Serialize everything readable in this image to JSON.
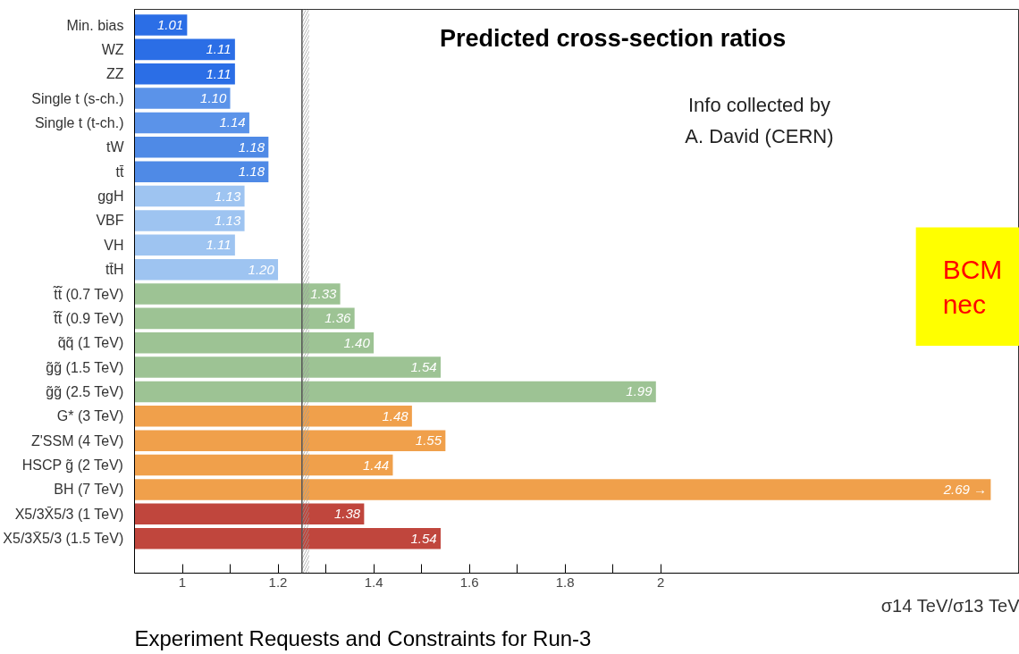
{
  "chart_data": {
    "type": "bar",
    "orientation": "horizontal",
    "title": "Predicted cross-section ratios",
    "xlabel": "σ14 TeV/σ13 TeV",
    "categories": [
      "Min. bias",
      "WZ",
      "ZZ",
      "Single t (s-ch.)",
      "Single t (t-ch.)",
      "tW",
      "tt̄",
      "ggH",
      "VBF",
      "VH",
      "tt̄H",
      "t̃t̃ (0.7 TeV)",
      "t̃t̃ (0.9 TeV)",
      "q̃q̃ (1 TeV)",
      "g̃g̃ (1.5 TeV)",
      "g̃g̃ (2.5 TeV)",
      "G* (3 TeV)",
      "Z'SSM (4 TeV)",
      "HSCP g̃ (2 TeV)",
      "BH (7 TeV)",
      "X5/3X̄5/3 (1 TeV)",
      "X5/3X̄5/3 (1.5 TeV)"
    ],
    "values": [
      1.01,
      1.11,
      1.11,
      1.1,
      1.14,
      1.18,
      1.18,
      1.13,
      1.13,
      1.11,
      1.2,
      1.33,
      1.36,
      1.4,
      1.54,
      1.99,
      1.48,
      1.55,
      1.44,
      2.69,
      1.38,
      1.54
    ],
    "value_labels": [
      "1.01",
      "1.11",
      "1.11",
      "1.10",
      "1.14",
      "1.18",
      "1.18",
      "1.13",
      "1.13",
      "1.11",
      "1.20",
      "1.33",
      "1.36",
      "1.40",
      "1.54",
      "1.99",
      "1.48",
      "1.55",
      "1.44",
      "2.69 →",
      "1.38",
      "1.54"
    ],
    "colors": [
      "#2b6ee6",
      "#2b6ee6",
      "#2b6ee6",
      "#5b93e9",
      "#5b93e9",
      "#4f8ae6",
      "#4f8ae6",
      "#9ec4f1",
      "#9ec4f1",
      "#9ec4f1",
      "#9ec4f1",
      "#9dc394",
      "#9dc394",
      "#9dc394",
      "#9dc394",
      "#9dc394",
      "#f0a04b",
      "#f0a04b",
      "#f0a04b",
      "#f0a04b",
      "#c0463d",
      "#c0463d"
    ],
    "xlim": [
      0.9,
      2.75
    ],
    "xticks": [
      1,
      {
        "value": 1.1,
        "label": null
      },
      1.2,
      {
        "value": 1.3,
        "label": null
      },
      1.4,
      {
        "value": 1.5,
        "label": null
      },
      1.6,
      {
        "value": 1.7,
        "label": null
      },
      1.8,
      {
        "value": 1.9,
        "label": null
      },
      2
    ],
    "ref_lines": [
      {
        "axis": "x",
        "value": 1.25,
        "color": "#555555"
      }
    ],
    "bands": [
      {
        "axis": "x",
        "from": 1.25,
        "to": 1.265,
        "color": "#999999"
      }
    ],
    "annotations": [
      "Info collected by\nA. David (CERN)",
      "BCM\nnec",
      "Experiment Requests and Constraints for Run-3"
    ],
    "grid": false
  }
}
